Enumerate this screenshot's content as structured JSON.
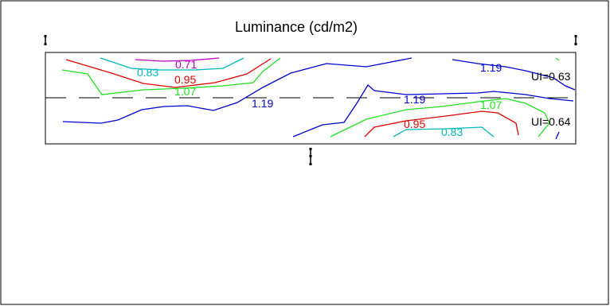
{
  "title": "Luminance (cd/m2)",
  "uniformity": {
    "upper": "UI=0.63",
    "lower": "UI=0.64"
  },
  "contours": [
    {
      "name": "0.71",
      "label": "0.71",
      "color": "#c000c0"
    },
    {
      "name": "0.83-upper",
      "label": "0.83",
      "color": "#00b8b8"
    },
    {
      "name": "0.95-upper",
      "label": "0.95",
      "color": "#e00000"
    },
    {
      "name": "1.07-upper",
      "label": "1.07",
      "color": "#20e020"
    },
    {
      "name": "1.19-upper-left",
      "label": "1.19",
      "color": "#0000d0"
    },
    {
      "name": "1.19-upper-right",
      "label": "1.19",
      "color": "#0000d0"
    },
    {
      "name": "1.19-lower-mid",
      "label": "1.19",
      "color": "#0000d0"
    },
    {
      "name": "1.07-lower",
      "label": "1.07",
      "color": "#20e020"
    },
    {
      "name": "0.95-lower",
      "label": "0.95",
      "color": "#e00000"
    },
    {
      "name": "0.83-lower",
      "label": "0.83",
      "color": "#00b8b8"
    }
  ]
}
